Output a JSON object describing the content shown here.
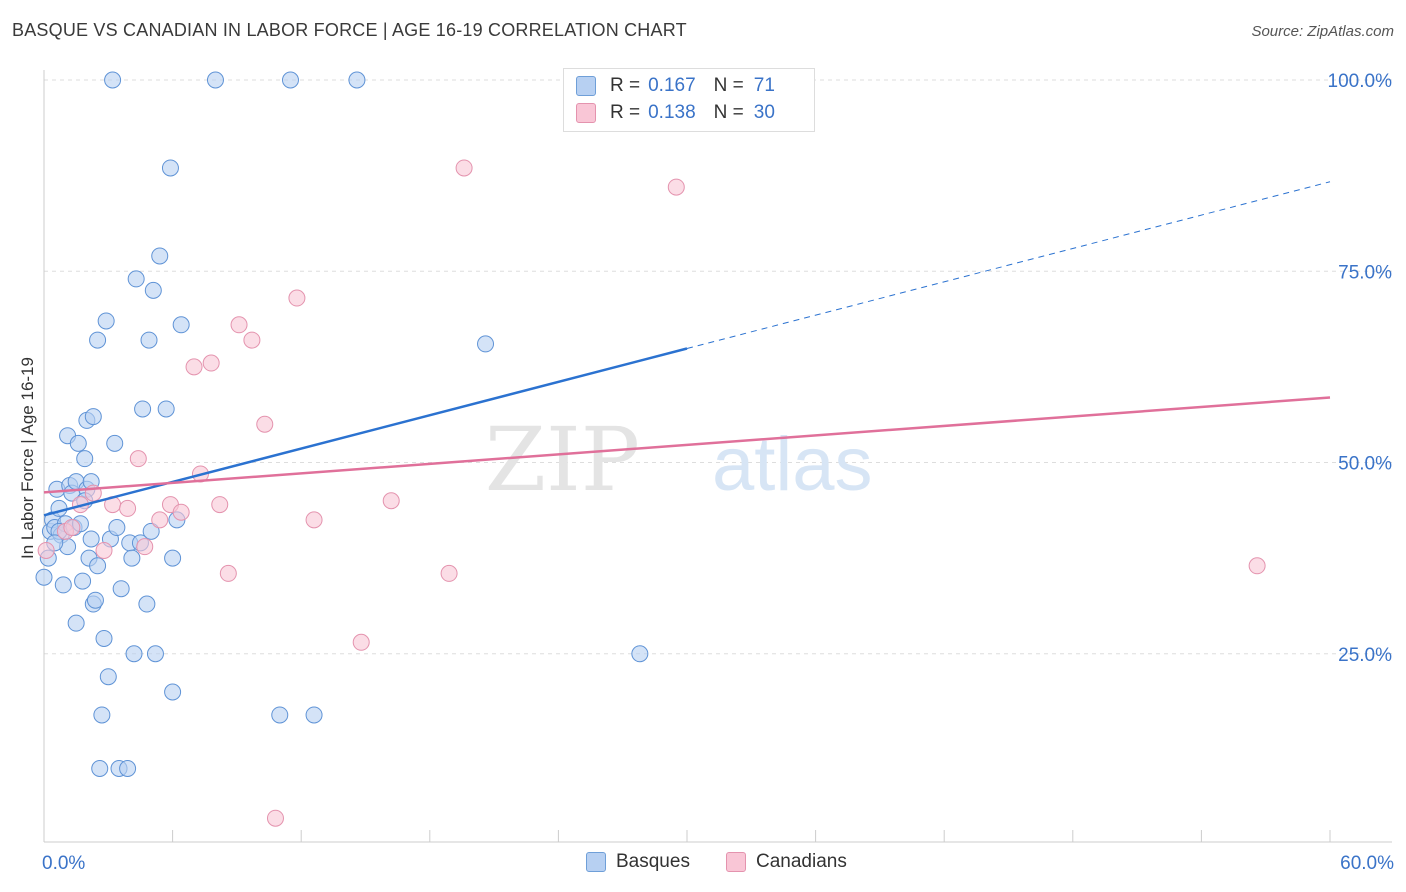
{
  "title": "BASQUE VS CANADIAN IN LABOR FORCE | AGE 16-19 CORRELATION CHART",
  "source": "Source: ZipAtlas.com",
  "watermark": {
    "part1": "ZIP",
    "part2": "atlas"
  },
  "colors": {
    "blue_fill": "#b7d0f2",
    "blue_stroke": "#5f93d6",
    "blue_line": "#2b72d0",
    "pink_fill": "#f9c6d6",
    "pink_stroke": "#e493ae",
    "pink_line": "#e0709a",
    "tick_text": "#3a73c8",
    "grid": "#dddddd"
  },
  "legend_top": {
    "rows": [
      {
        "r_label": "R =",
        "r_value": "0.167",
        "n_label": "N =",
        "n_value": "71"
      },
      {
        "r_label": "R =",
        "r_value": "0.138",
        "n_label": "N =",
        "n_value": "30"
      }
    ]
  },
  "legend_bottom": {
    "items": [
      "Basques",
      "Canadians"
    ]
  },
  "chart_data": {
    "type": "scatter",
    "title": "BASQUE VS CANADIAN IN LABOR FORCE | AGE 16-19 CORRELATION CHART",
    "xlabel": "",
    "ylabel": "In Labor Force | Age 16-19",
    "xlim": [
      0,
      60
    ],
    "ylim": [
      0,
      102
    ],
    "x_tick_labels": [
      "0.0%",
      "60.0%"
    ],
    "y_ticks": [
      25,
      50,
      75,
      100
    ],
    "y_tick_labels": [
      "25.0%",
      "50.0%",
      "75.0%",
      "100.0%"
    ],
    "grid": true,
    "series": [
      {
        "name": "Basques",
        "r": 0.167,
        "n": 71,
        "trend": {
          "x0": 0,
          "y0": 43.1,
          "x1": 30,
          "y1": 64.9,
          "dashed_to_x": 60,
          "dashed_to_y": 86.7
        },
        "points": [
          [
            0.0,
            35.0
          ],
          [
            0.2,
            37.5
          ],
          [
            0.3,
            41.0
          ],
          [
            0.4,
            42.5
          ],
          [
            0.5,
            41.5
          ],
          [
            0.6,
            46.5
          ],
          [
            0.7,
            44.0
          ],
          [
            0.8,
            40.5
          ],
          [
            0.9,
            34.0
          ],
          [
            1.0,
            42.0
          ],
          [
            1.1,
            39.0
          ],
          [
            1.1,
            53.5
          ],
          [
            1.2,
            47.0
          ],
          [
            1.3,
            46.0
          ],
          [
            1.4,
            41.5
          ],
          [
            1.5,
            47.5
          ],
          [
            1.5,
            29.0
          ],
          [
            1.6,
            52.5
          ],
          [
            1.7,
            42.0
          ],
          [
            1.8,
            34.5
          ],
          [
            1.9,
            50.5
          ],
          [
            2.0,
            46.5
          ],
          [
            2.0,
            55.5
          ],
          [
            2.1,
            37.5
          ],
          [
            2.2,
            47.5
          ],
          [
            2.3,
            56.0
          ],
          [
            2.3,
            31.5
          ],
          [
            2.4,
            32.0
          ],
          [
            2.5,
            36.5
          ],
          [
            2.5,
            66.0
          ],
          [
            2.6,
            10.0
          ],
          [
            2.7,
            17.0
          ],
          [
            2.8,
            27.0
          ],
          [
            2.9,
            68.5
          ],
          [
            3.0,
            22.0
          ],
          [
            3.1,
            40.0
          ],
          [
            3.2,
            100.0
          ],
          [
            3.3,
            52.5
          ],
          [
            3.4,
            41.5
          ],
          [
            3.5,
            10.0
          ],
          [
            3.6,
            33.5
          ],
          [
            3.9,
            10.0
          ],
          [
            4.0,
            39.5
          ],
          [
            4.1,
            37.5
          ],
          [
            4.2,
            25.0
          ],
          [
            4.3,
            74.0
          ],
          [
            4.5,
            39.5
          ],
          [
            4.6,
            57.0
          ],
          [
            4.8,
            31.5
          ],
          [
            4.9,
            66.0
          ],
          [
            5.0,
            41.0
          ],
          [
            5.1,
            72.5
          ],
          [
            5.2,
            25.0
          ],
          [
            5.4,
            77.0
          ],
          [
            5.7,
            57.0
          ],
          [
            5.9,
            88.5
          ],
          [
            6.0,
            20.0
          ],
          [
            6.0,
            37.5
          ],
          [
            6.2,
            42.5
          ],
          [
            6.4,
            68.0
          ],
          [
            8.0,
            100.0
          ],
          [
            11.0,
            17.0
          ],
          [
            11.5,
            100.0
          ],
          [
            12.6,
            17.0
          ],
          [
            14.6,
            100.0
          ],
          [
            20.6,
            65.5
          ],
          [
            27.8,
            25.0
          ],
          [
            0.7,
            41.0
          ],
          [
            1.9,
            45.0
          ],
          [
            2.2,
            40.0
          ],
          [
            0.5,
            39.5
          ]
        ]
      },
      {
        "name": "Canadians",
        "r": 0.138,
        "n": 30,
        "trend": {
          "x0": 0,
          "y0": 46.1,
          "x1": 60,
          "y1": 58.5
        },
        "points": [
          [
            0.1,
            38.5
          ],
          [
            1.0,
            41.0
          ],
          [
            1.7,
            44.5
          ],
          [
            2.3,
            46.0
          ],
          [
            2.8,
            38.5
          ],
          [
            3.2,
            44.5
          ],
          [
            3.9,
            44.0
          ],
          [
            4.4,
            50.5
          ],
          [
            4.7,
            39.0
          ],
          [
            5.4,
            42.5
          ],
          [
            5.9,
            44.5
          ],
          [
            6.4,
            43.5
          ],
          [
            7.0,
            62.5
          ],
          [
            7.3,
            48.5
          ],
          [
            7.8,
            63.0
          ],
          [
            8.2,
            44.5
          ],
          [
            8.6,
            35.5
          ],
          [
            9.1,
            68.0
          ],
          [
            9.7,
            66.0
          ],
          [
            10.3,
            55.0
          ],
          [
            10.8,
            3.5
          ],
          [
            11.8,
            71.5
          ],
          [
            12.6,
            42.5
          ],
          [
            14.8,
            26.5
          ],
          [
            16.2,
            45.0
          ],
          [
            18.9,
            35.5
          ],
          [
            19.6,
            88.5
          ],
          [
            29.5,
            86.0
          ],
          [
            56.6,
            36.5
          ],
          [
            1.3,
            41.5
          ]
        ]
      }
    ]
  }
}
